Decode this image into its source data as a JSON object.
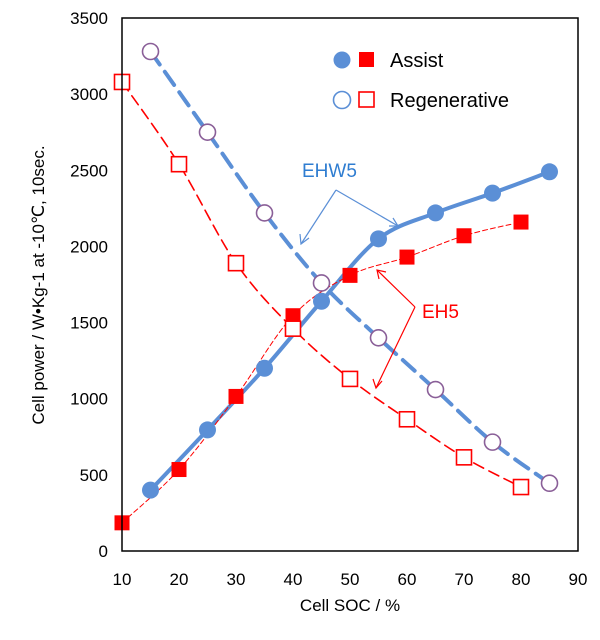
{
  "chart_data": {
    "type": "line",
    "xlabel": "Cell SOC / %",
    "ylabel": "Cell power / W•Kg-1 at -10℃, 10sec.",
    "xlim": [
      10,
      90
    ],
    "ylim": [
      0,
      3500
    ],
    "xticks": [
      10,
      20,
      30,
      40,
      50,
      60,
      70,
      80,
      90
    ],
    "yticks": [
      0,
      500,
      1000,
      1500,
      2000,
      2500,
      3000,
      3500
    ],
    "colors": {
      "blue": "#5b8fd6",
      "red": "#ff0000",
      "purple": "#8a5f98",
      "blue_label": "#2f7dd1"
    },
    "legend": {
      "assist_label": "Assist",
      "regen_label": "Regenerative",
      "assist_blue_icon": "filled-circle",
      "assist_red_icon": "filled-square",
      "regen_blue_icon": "open-circle",
      "regen_red_icon": "open-square"
    },
    "series": [
      {
        "name": "EHW5 Assist",
        "line": "solid",
        "marker": "filled-circle",
        "x": [
          15,
          25,
          35,
          45,
          55,
          65,
          75,
          85
        ],
        "y": [
          400,
          795,
          1200,
          1640,
          2050,
          2220,
          2350,
          2490
        ]
      },
      {
        "name": "EHW5 Regenerative",
        "line": "dashed",
        "marker": "open-circle",
        "x": [
          15,
          25,
          35,
          45,
          55,
          65,
          75,
          85
        ],
        "y": [
          3280,
          2750,
          2220,
          1760,
          1400,
          1060,
          715,
          445
        ]
      },
      {
        "name": "EH5 Assist",
        "line": "thin-dashed",
        "marker": "filled-square",
        "x": [
          10,
          20,
          30,
          40,
          50,
          60,
          70,
          80
        ],
        "y": [
          185,
          535,
          1015,
          1545,
          1810,
          1930,
          2070,
          2160
        ]
      },
      {
        "name": "EH5 Regenerative",
        "line": "dashed",
        "marker": "open-square",
        "x": [
          10,
          20,
          30,
          40,
          50,
          60,
          70,
          80
        ],
        "y": [
          3080,
          2540,
          1890,
          1460,
          1130,
          865,
          615,
          420
        ]
      }
    ],
    "annotations": {
      "ehw5": "EHW5",
      "eh5": "EH5"
    }
  }
}
